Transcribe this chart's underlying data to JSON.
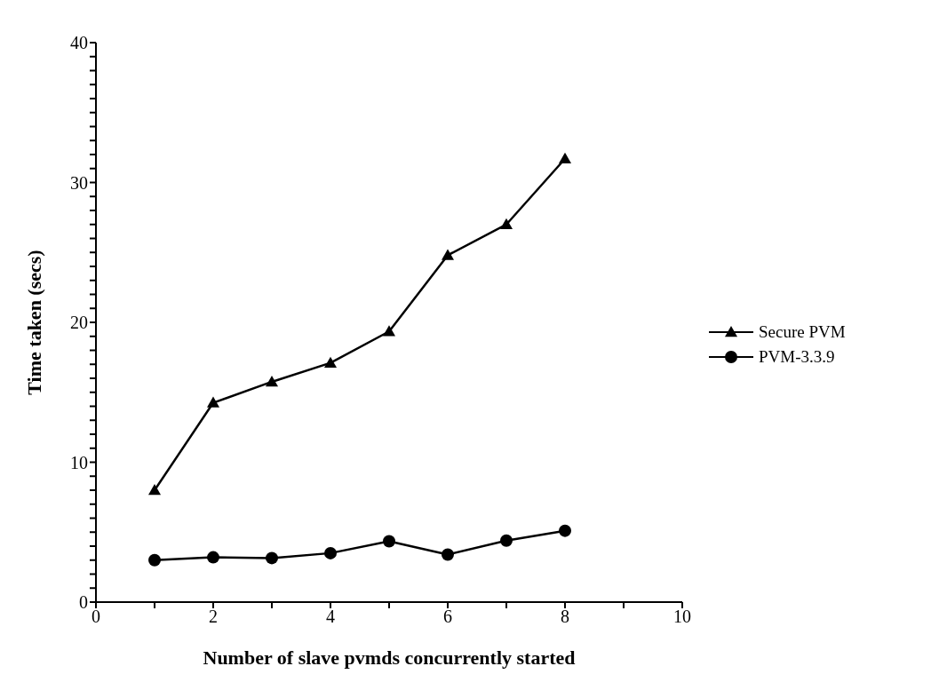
{
  "chart_data": {
    "type": "line",
    "xlabel": "Number of slave pvmds concurrently started",
    "ylabel": "Time taken (secs)",
    "x": [
      1,
      2,
      3,
      4,
      5,
      6,
      7,
      8
    ],
    "series": [
      {
        "name": "Secure PVM",
        "color": "#000000",
        "marker": "triangle",
        "values": [
          8.0,
          14.25,
          15.75,
          17.1,
          19.35,
          24.8,
          27.0,
          31.7
        ]
      },
      {
        "name": "PVM-3.3.9",
        "color": "#000000",
        "marker": "circle",
        "values": [
          3.0,
          3.2,
          3.15,
          3.5,
          4.35,
          3.4,
          4.4,
          5.1
        ]
      }
    ],
    "xlim": [
      0,
      10
    ],
    "xticks": [
      0,
      {
        "value": 1,
        "label": null
      },
      2,
      {
        "value": 3,
        "label": null
      },
      4,
      {
        "value": 5,
        "label": null
      },
      6,
      {
        "value": 7,
        "label": null
      },
      8,
      {
        "value": 9,
        "label": null
      },
      10
    ],
    "ylim": [
      0,
      40
    ],
    "yticks": [
      0,
      {
        "value": 1,
        "label": null
      },
      {
        "value": 2,
        "label": null
      },
      {
        "value": 3,
        "label": null
      },
      {
        "value": 4,
        "label": null
      },
      {
        "value": 5,
        "label": null
      },
      {
        "value": 6,
        "label": null
      },
      {
        "value": 7,
        "label": null
      },
      {
        "value": 8,
        "label": null
      },
      {
        "value": 9,
        "label": null
      },
      10,
      {
        "value": 11,
        "label": null
      },
      {
        "value": 12,
        "label": null
      },
      {
        "value": 13,
        "label": null
      },
      {
        "value": 14,
        "label": null
      },
      {
        "value": 15,
        "label": null
      },
      {
        "value": 16,
        "label": null
      },
      {
        "value": 17,
        "label": null
      },
      {
        "value": 18,
        "label": null
      },
      {
        "value": 19,
        "label": null
      },
      20,
      {
        "value": 21,
        "label": null
      },
      {
        "value": 22,
        "label": null
      },
      {
        "value": 23,
        "label": null
      },
      {
        "value": 24,
        "label": null
      },
      {
        "value": 25,
        "label": null
      },
      {
        "value": 26,
        "label": null
      },
      {
        "value": 27,
        "label": null
      },
      {
        "value": 28,
        "label": null
      },
      {
        "value": 29,
        "label": null
      },
      30,
      {
        "value": 31,
        "label": null
      },
      {
        "value": 32,
        "label": null
      },
      {
        "value": 33,
        "label": null
      },
      {
        "value": 34,
        "label": null
      },
      {
        "value": 35,
        "label": null
      },
      {
        "value": 36,
        "label": null
      },
      {
        "value": 37,
        "label": null
      },
      {
        "value": 38,
        "label": null
      },
      {
        "value": 39,
        "label": null
      },
      40
    ],
    "grid": false,
    "legend": "right",
    "line_style": "solid"
  }
}
